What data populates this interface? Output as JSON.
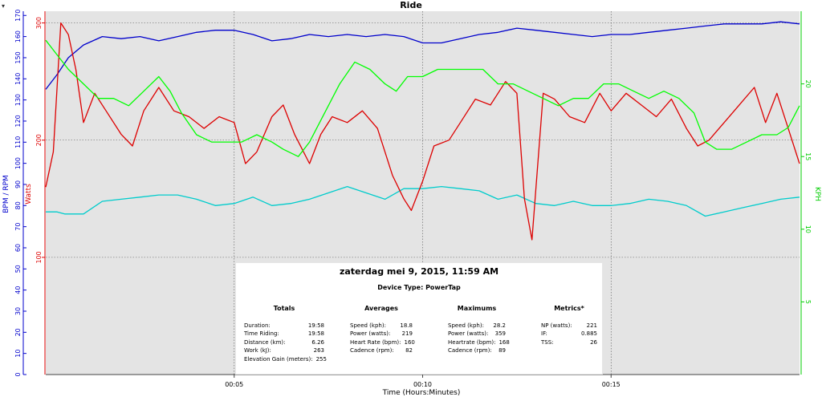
{
  "chart_data": {
    "type": "line",
    "title": "Ride",
    "xlabel": "Time (Hours:Minutes)",
    "x_unit": "minutes",
    "xlim": [
      0,
      20
    ],
    "x_ticks": [
      {
        "value": 5,
        "label": "00:05"
      },
      {
        "value": 10,
        "label": "00:10"
      },
      {
        "value": 15,
        "label": "00:15"
      }
    ],
    "axes": {
      "bpm": {
        "label": "BPM / RPM",
        "range": [
          0,
          172
        ],
        "ticks": [
          0,
          10,
          20,
          30,
          40,
          50,
          60,
          70,
          80,
          90,
          100,
          110,
          120,
          130,
          140,
          150,
          160,
          170
        ],
        "color": "#0000cc"
      },
      "watts": {
        "label": "Watts",
        "range": [
          0,
          310
        ],
        "ticks": [
          100,
          200,
          300
        ],
        "color": "#dd0000"
      },
      "kph": {
        "label": "KPH",
        "range": [
          0,
          25
        ],
        "ticks": [
          5,
          10,
          15,
          20
        ],
        "color": "#00cc00"
      }
    },
    "grid": true,
    "series": [
      {
        "name": "Heart Rate",
        "axis": "bpm",
        "color": "#0000cc",
        "points": [
          [
            0,
            135
          ],
          [
            0.3,
            142
          ],
          [
            0.6,
            150
          ],
          [
            1,
            156
          ],
          [
            1.5,
            160
          ],
          [
            2,
            159
          ],
          [
            2.5,
            160
          ],
          [
            3,
            158
          ],
          [
            3.5,
            160
          ],
          [
            4,
            162
          ],
          [
            4.5,
            163
          ],
          [
            5,
            163
          ],
          [
            5.5,
            161
          ],
          [
            6,
            158
          ],
          [
            6.5,
            159
          ],
          [
            7,
            161
          ],
          [
            7.5,
            160
          ],
          [
            8,
            161
          ],
          [
            8.5,
            160
          ],
          [
            9,
            161
          ],
          [
            9.5,
            160
          ],
          [
            10,
            157
          ],
          [
            10.5,
            157
          ],
          [
            11,
            159
          ],
          [
            11.5,
            161
          ],
          [
            12,
            162
          ],
          [
            12.5,
            164
          ],
          [
            13,
            163
          ],
          [
            13.5,
            162
          ],
          [
            14,
            161
          ],
          [
            14.5,
            160
          ],
          [
            15,
            161
          ],
          [
            15.5,
            161
          ],
          [
            16,
            162
          ],
          [
            16.5,
            163
          ],
          [
            17,
            164
          ],
          [
            17.5,
            165
          ],
          [
            18,
            166
          ],
          [
            18.5,
            166
          ],
          [
            19,
            166
          ],
          [
            19.5,
            167
          ],
          [
            20,
            166
          ]
        ]
      },
      {
        "name": "Cadence",
        "axis": "bpm",
        "color": "#00cccc",
        "points": [
          [
            0,
            77
          ],
          [
            0.3,
            77
          ],
          [
            0.5,
            76
          ],
          [
            1,
            76
          ],
          [
            1.5,
            82
          ],
          [
            2,
            83
          ],
          [
            2.5,
            84
          ],
          [
            3,
            85
          ],
          [
            3.5,
            85
          ],
          [
            4,
            83
          ],
          [
            4.5,
            80
          ],
          [
            5,
            81
          ],
          [
            5.5,
            84
          ],
          [
            6,
            80
          ],
          [
            6.5,
            81
          ],
          [
            7,
            83
          ],
          [
            7.5,
            86
          ],
          [
            8,
            89
          ],
          [
            8.5,
            86
          ],
          [
            9,
            83
          ],
          [
            9.5,
            88
          ],
          [
            10,
            88
          ],
          [
            10.5,
            89
          ],
          [
            11,
            88
          ],
          [
            11.5,
            87
          ],
          [
            12,
            83
          ],
          [
            12.5,
            85
          ],
          [
            13,
            81
          ],
          [
            13.5,
            80
          ],
          [
            14,
            82
          ],
          [
            14.5,
            80
          ],
          [
            15,
            80
          ],
          [
            15.5,
            81
          ],
          [
            16,
            83
          ],
          [
            16.5,
            82
          ],
          [
            17,
            80
          ],
          [
            17.5,
            75
          ],
          [
            18,
            77
          ],
          [
            18.5,
            79
          ],
          [
            19,
            81
          ],
          [
            19.5,
            83
          ],
          [
            20,
            84
          ]
        ]
      },
      {
        "name": "Power",
        "axis": "watts",
        "color": "#dd0000",
        "points": [
          [
            0,
            160
          ],
          [
            0.2,
            190
          ],
          [
            0.4,
            300
          ],
          [
            0.6,
            290
          ],
          [
            0.8,
            260
          ],
          [
            1,
            215
          ],
          [
            1.3,
            240
          ],
          [
            1.6,
            225
          ],
          [
            2,
            205
          ],
          [
            2.3,
            195
          ],
          [
            2.6,
            225
          ],
          [
            3,
            245
          ],
          [
            3.4,
            225
          ],
          [
            3.8,
            220
          ],
          [
            4.2,
            210
          ],
          [
            4.6,
            220
          ],
          [
            5,
            215
          ],
          [
            5.3,
            180
          ],
          [
            5.6,
            190
          ],
          [
            6,
            220
          ],
          [
            6.3,
            230
          ],
          [
            6.6,
            205
          ],
          [
            7,
            180
          ],
          [
            7.3,
            205
          ],
          [
            7.6,
            220
          ],
          [
            8,
            215
          ],
          [
            8.4,
            225
          ],
          [
            8.8,
            210
          ],
          [
            9.2,
            170
          ],
          [
            9.5,
            150
          ],
          [
            9.7,
            140
          ],
          [
            10,
            165
          ],
          [
            10.3,
            195
          ],
          [
            10.7,
            200
          ],
          [
            11,
            215
          ],
          [
            11.4,
            235
          ],
          [
            11.8,
            230
          ],
          [
            12.2,
            250
          ],
          [
            12.5,
            240
          ],
          [
            12.7,
            150
          ],
          [
            12.9,
            115
          ],
          [
            13.2,
            240
          ],
          [
            13.5,
            235
          ],
          [
            13.9,
            220
          ],
          [
            14.3,
            215
          ],
          [
            14.7,
            240
          ],
          [
            15,
            225
          ],
          [
            15.4,
            240
          ],
          [
            15.8,
            230
          ],
          [
            16.2,
            220
          ],
          [
            16.6,
            235
          ],
          [
            17,
            210
          ],
          [
            17.3,
            195
          ],
          [
            17.6,
            200
          ],
          [
            18,
            215
          ],
          [
            18.4,
            230
          ],
          [
            18.8,
            245
          ],
          [
            19.1,
            215
          ],
          [
            19.4,
            240
          ],
          [
            19.7,
            210
          ],
          [
            20,
            180
          ]
        ]
      },
      {
        "name": "Speed",
        "axis": "kph",
        "color": "#00ff00",
        "points": [
          [
            0,
            23
          ],
          [
            0.3,
            22
          ],
          [
            0.6,
            21
          ],
          [
            1,
            20
          ],
          [
            1.4,
            19
          ],
          [
            1.8,
            19
          ],
          [
            2.2,
            18.5
          ],
          [
            2.6,
            19.5
          ],
          [
            3,
            20.5
          ],
          [
            3.3,
            19.5
          ],
          [
            3.6,
            18
          ],
          [
            4,
            16.5
          ],
          [
            4.4,
            16
          ],
          [
            4.8,
            16
          ],
          [
            5.2,
            16
          ],
          [
            5.6,
            16.5
          ],
          [
            6,
            16
          ],
          [
            6.3,
            15.5
          ],
          [
            6.7,
            15
          ],
          [
            7,
            16
          ],
          [
            7.4,
            18
          ],
          [
            7.8,
            20
          ],
          [
            8.2,
            21.5
          ],
          [
            8.6,
            21
          ],
          [
            9,
            20
          ],
          [
            9.3,
            19.5
          ],
          [
            9.6,
            20.5
          ],
          [
            10,
            20.5
          ],
          [
            10.4,
            21
          ],
          [
            10.8,
            21
          ],
          [
            11.2,
            21
          ],
          [
            11.6,
            21
          ],
          [
            12,
            20
          ],
          [
            12.4,
            20
          ],
          [
            12.8,
            19.5
          ],
          [
            13.2,
            19
          ],
          [
            13.6,
            18.5
          ],
          [
            14,
            19
          ],
          [
            14.4,
            19
          ],
          [
            14.8,
            20
          ],
          [
            15.2,
            20
          ],
          [
            15.6,
            19.5
          ],
          [
            16,
            19
          ],
          [
            16.4,
            19.5
          ],
          [
            16.8,
            19
          ],
          [
            17.2,
            18
          ],
          [
            17.5,
            16
          ],
          [
            17.8,
            15.5
          ],
          [
            18.2,
            15.5
          ],
          [
            18.6,
            16
          ],
          [
            19,
            16.5
          ],
          [
            19.4,
            16.5
          ],
          [
            19.7,
            17
          ],
          [
            20,
            18.5
          ]
        ]
      }
    ]
  },
  "summary": {
    "date": "zaterdag mei 9, 2015, 11:59 AM",
    "device": "Device Type: PowerTap",
    "columns": [
      {
        "heading": "Totals",
        "rows": [
          {
            "label": "Duration:",
            "value": "19:58"
          },
          {
            "label": "Time Riding:",
            "value": "19:58"
          },
          {
            "label": "Distance (km):",
            "value": "6.26"
          },
          {
            "label": "Work (kJ):",
            "value": "263"
          },
          {
            "label": "Elevation Gain (meters):",
            "value": "255"
          }
        ]
      },
      {
        "heading": "Averages",
        "rows": [
          {
            "label": "Speed (kph):",
            "value": "18.8"
          },
          {
            "label": "Power (watts):",
            "value": "219"
          },
          {
            "label": "Heart Rate (bpm):",
            "value": "160"
          },
          {
            "label": "Cadence (rpm):",
            "value": "82"
          }
        ]
      },
      {
        "heading": "Maximums",
        "rows": [
          {
            "label": "Speed (kph):",
            "value": "28.2"
          },
          {
            "label": "Power (watts):",
            "value": "359"
          },
          {
            "label": "Heartrate (bpm):",
            "value": "168"
          },
          {
            "label": "Cadence (rpm):",
            "value": "89"
          }
        ]
      },
      {
        "heading": "Metrics*",
        "rows": [
          {
            "label": "NP (watts):",
            "value": "221"
          },
          {
            "label": "IF:",
            "value": "0.885"
          },
          {
            "label": "TSS:",
            "value": "26"
          }
        ]
      }
    ]
  }
}
